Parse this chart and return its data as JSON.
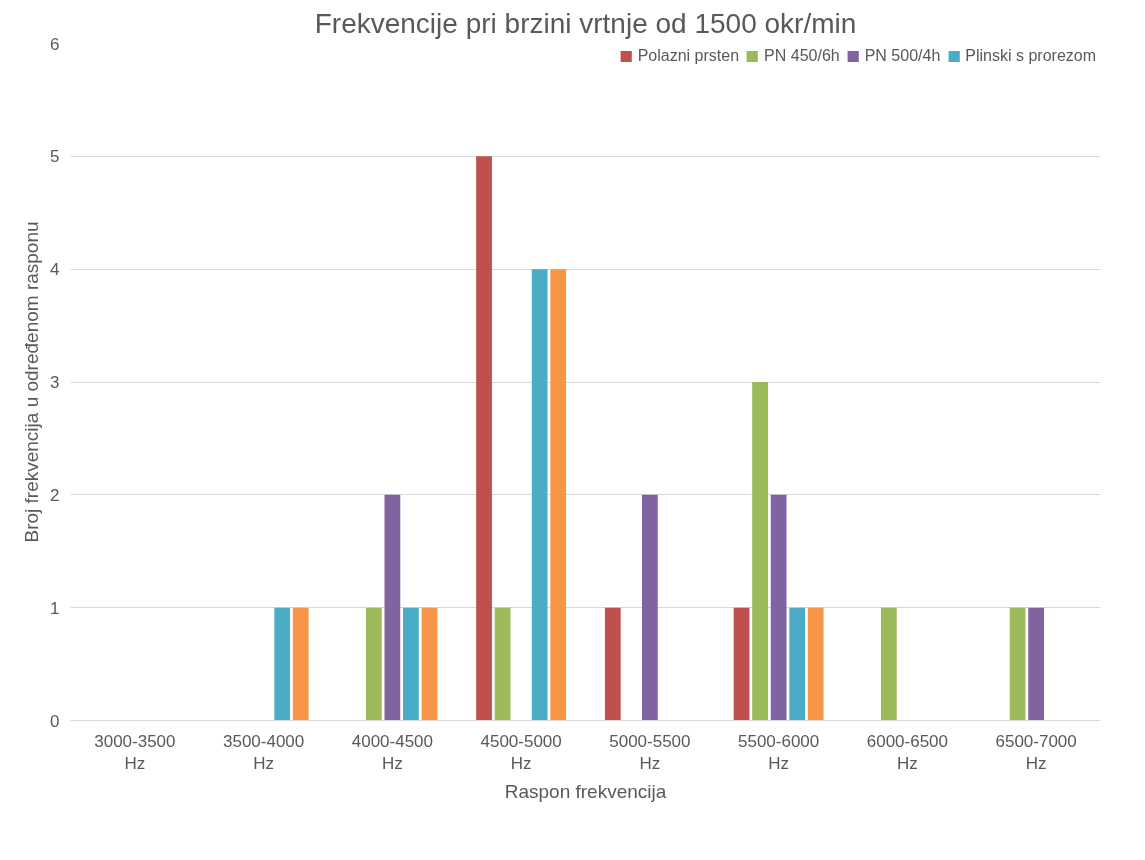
{
  "chart_data": {
    "type": "bar",
    "title": "Frekvencije pri brzini vrtnje od 1500 okr/min",
    "xlabel": "Raspon frekvencija",
    "ylabel": "Broj frekvencija u određenom rasponu",
    "categories": [
      "3000-3500 Hz",
      "3500-4000 Hz",
      "4000-4500 Hz",
      "4500-5000 Hz",
      "5000-5500 Hz",
      "5500-6000 Hz",
      "6000-6500 Hz",
      "6500-7000 Hz"
    ],
    "series": [
      {
        "name": "Polazni prsten",
        "color": "#c0504d",
        "values": [
          0,
          0,
          0,
          5,
          1,
          1,
          0,
          0
        ]
      },
      {
        "name": "PN 450/6h",
        "color": "#9bbb59",
        "values": [
          0,
          0,
          1,
          1,
          0,
          3,
          1,
          1
        ]
      },
      {
        "name": "PN 500/4h",
        "color": "#8064a2",
        "values": [
          0,
          0,
          2,
          0,
          2,
          2,
          0,
          1
        ]
      },
      {
        "name": "Plinski s prorezom",
        "color": "#4bacc6",
        "values": [
          0,
          1,
          1,
          4,
          0,
          1,
          0,
          0
        ]
      },
      {
        "color": "#f79646",
        "values": [
          0,
          1,
          1,
          4,
          0,
          1,
          0,
          0
        ]
      }
    ],
    "ylim": [
      0,
      6
    ],
    "yticks": [
      0,
      1,
      2,
      3,
      4,
      5,
      6
    ],
    "grid": "y",
    "legend": "top right"
  }
}
